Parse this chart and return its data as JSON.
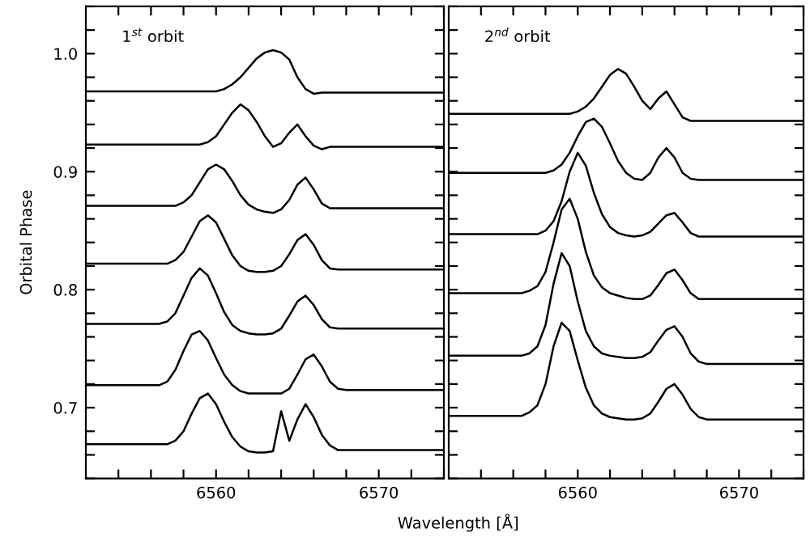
{
  "chart_data": [
    {
      "type": "line",
      "ylabel": "Orbital Phase",
      "xlabel": "Wavelength [Å]",
      "annotations": [
        "1$^{st}$ orbit"
      ],
      "legend": false,
      "grid": false,
      "marker": "none",
      "line_style": "solid",
      "xlim": [
        6552,
        6574
      ],
      "ylim": [
        0.64,
        1.04
      ],
      "xticks": [
        {
          "value": 6554,
          "label": null
        },
        {
          "value": 6556,
          "label": null
        },
        {
          "value": 6558,
          "label": null
        },
        6560,
        {
          "value": 6562,
          "label": null
        },
        {
          "value": 6564,
          "label": null
        },
        {
          "value": 6566,
          "label": null
        },
        {
          "value": 6568,
          "label": null
        },
        6570,
        {
          "value": 6572,
          "label": null
        },
        {
          "value": 6574,
          "label": null
        }
      ],
      "yticks": [
        {
          "value": 0.64,
          "label": null
        },
        {
          "value": 0.66,
          "label": null
        },
        {
          "value": 0.68,
          "label": null
        },
        0.7,
        {
          "value": 0.72,
          "label": null
        },
        {
          "value": 0.74,
          "label": null
        },
        {
          "value": 0.76,
          "label": null
        },
        {
          "value": 0.78,
          "label": null
        },
        0.8,
        {
          "value": 0.82,
          "label": null
        },
        {
          "value": 0.84,
          "label": null
        },
        {
          "value": 0.86,
          "label": null
        },
        {
          "value": 0.88,
          "label": null
        },
        0.9,
        {
          "value": 0.92,
          "label": null
        },
        {
          "value": 0.94,
          "label": null
        },
        {
          "value": 0.96,
          "label": null
        },
        {
          "value": 0.98,
          "label": null
        },
        {
          "value": 1.0,
          "label": "1.0"
        },
        {
          "value": 1.02,
          "label": null
        },
        {
          "value": 1.04,
          "label": null
        }
      ],
      "x": [
        6552,
        6552.5,
        6553,
        6553.5,
        6554,
        6554.5,
        6555,
        6555.5,
        6556,
        6556.5,
        6557,
        6557.5,
        6558,
        6558.5,
        6559,
        6559.5,
        6560,
        6560.5,
        6561,
        6561.5,
        6562,
        6562.5,
        6563,
        6563.5,
        6564,
        6564.5,
        6565,
        6565.5,
        6566,
        6566.5,
        6567,
        6567.5,
        6568,
        6568.5,
        6569,
        6569.5,
        6570,
        6570.5,
        6571,
        6571.5,
        6572,
        6572.5,
        6573,
        6573.5,
        6574
      ],
      "series": [
        {
          "color": "#000000",
          "values": [
            0.968,
            0.968,
            0.968,
            0.968,
            0.968,
            0.968,
            0.968,
            0.968,
            0.968,
            0.968,
            0.968,
            0.968,
            0.968,
            0.968,
            0.968,
            0.968,
            0.968,
            0.97,
            0.974,
            0.98,
            0.988,
            0.996,
            1.001,
            1.003,
            1.001,
            0.995,
            0.98,
            0.97,
            0.966,
            0.967,
            0.967,
            0.967,
            0.967,
            0.967,
            0.967,
            0.967,
            0.967,
            0.967,
            0.967,
            0.967,
            0.967,
            0.967,
            0.967,
            0.967,
            0.967
          ]
        },
        {
          "color": "#000000",
          "values": [
            0.923,
            0.923,
            0.923,
            0.923,
            0.923,
            0.923,
            0.923,
            0.923,
            0.923,
            0.923,
            0.923,
            0.923,
            0.923,
            0.923,
            0.923,
            0.925,
            0.93,
            0.94,
            0.95,
            0.957,
            0.952,
            0.942,
            0.93,
            0.921,
            0.924,
            0.933,
            0.94,
            0.93,
            0.922,
            0.919,
            0.921,
            0.921,
            0.921,
            0.921,
            0.921,
            0.921,
            0.921,
            0.921,
            0.921,
            0.921,
            0.921,
            0.921,
            0.921,
            0.921,
            0.921
          ]
        },
        {
          "color": "#000000",
          "values": [
            0.871,
            0.871,
            0.871,
            0.871,
            0.871,
            0.871,
            0.871,
            0.871,
            0.871,
            0.871,
            0.871,
            0.871,
            0.874,
            0.88,
            0.891,
            0.902,
            0.906,
            0.902,
            0.892,
            0.88,
            0.872,
            0.868,
            0.866,
            0.865,
            0.868,
            0.876,
            0.889,
            0.895,
            0.885,
            0.873,
            0.869,
            0.869,
            0.869,
            0.869,
            0.869,
            0.869,
            0.869,
            0.869,
            0.869,
            0.869,
            0.869,
            0.869,
            0.869,
            0.869,
            0.869
          ]
        },
        {
          "color": "#000000",
          "values": [
            0.822,
            0.822,
            0.822,
            0.822,
            0.822,
            0.822,
            0.822,
            0.822,
            0.822,
            0.822,
            0.822,
            0.825,
            0.832,
            0.845,
            0.858,
            0.863,
            0.857,
            0.843,
            0.829,
            0.82,
            0.816,
            0.815,
            0.815,
            0.816,
            0.82,
            0.83,
            0.842,
            0.847,
            0.838,
            0.825,
            0.818,
            0.817,
            0.817,
            0.817,
            0.817,
            0.817,
            0.817,
            0.817,
            0.817,
            0.817,
            0.817,
            0.817,
            0.817,
            0.817,
            0.817
          ]
        },
        {
          "color": "#000000",
          "values": [
            0.771,
            0.771,
            0.771,
            0.771,
            0.771,
            0.771,
            0.771,
            0.771,
            0.771,
            0.771,
            0.773,
            0.78,
            0.795,
            0.81,
            0.818,
            0.812,
            0.797,
            0.781,
            0.77,
            0.765,
            0.763,
            0.762,
            0.762,
            0.763,
            0.767,
            0.778,
            0.79,
            0.795,
            0.787,
            0.775,
            0.768,
            0.767,
            0.767,
            0.767,
            0.767,
            0.767,
            0.767,
            0.767,
            0.767,
            0.767,
            0.767,
            0.767,
            0.767,
            0.767,
            0.767
          ]
        },
        {
          "color": "#000000",
          "values": [
            0.719,
            0.719,
            0.719,
            0.719,
            0.719,
            0.719,
            0.719,
            0.719,
            0.719,
            0.719,
            0.722,
            0.732,
            0.748,
            0.762,
            0.765,
            0.757,
            0.742,
            0.728,
            0.719,
            0.714,
            0.712,
            0.712,
            0.712,
            0.712,
            0.712,
            0.716,
            0.728,
            0.741,
            0.745,
            0.735,
            0.722,
            0.716,
            0.715,
            0.715,
            0.715,
            0.715,
            0.715,
            0.715,
            0.715,
            0.715,
            0.715,
            0.715,
            0.715,
            0.715,
            0.715
          ]
        },
        {
          "color": "#000000",
          "values": [
            0.669,
            0.669,
            0.669,
            0.669,
            0.669,
            0.669,
            0.669,
            0.669,
            0.669,
            0.669,
            0.669,
            0.672,
            0.68,
            0.695,
            0.708,
            0.712,
            0.703,
            0.688,
            0.675,
            0.667,
            0.663,
            0.662,
            0.662,
            0.663,
            0.697,
            0.672,
            0.69,
            0.703,
            0.692,
            0.677,
            0.668,
            0.664,
            0.664,
            0.664,
            0.664,
            0.664,
            0.664,
            0.664,
            0.664,
            0.664,
            0.664,
            0.664,
            0.664,
            0.664,
            0.664
          ]
        }
      ]
    },
    {
      "type": "line",
      "annotations": [
        "2$^{nd}$ orbit"
      ],
      "legend": false,
      "grid": false,
      "marker": "none",
      "line_style": "solid",
      "tick_labels": "x",
      "xlim": [
        6552,
        6574
      ],
      "ylim": [
        0.64,
        1.04
      ],
      "xticks": [
        {
          "value": 6554,
          "label": null
        },
        {
          "value": 6556,
          "label": null
        },
        {
          "value": 6558,
          "label": null
        },
        6560,
        {
          "value": 6562,
          "label": null
        },
        {
          "value": 6564,
          "label": null
        },
        {
          "value": 6566,
          "label": null
        },
        {
          "value": 6568,
          "label": null
        },
        6570,
        {
          "value": 6572,
          "label": null
        },
        {
          "value": 6574,
          "label": null
        }
      ],
      "yticks": [
        {
          "value": 0.64,
          "label": null
        },
        {
          "value": 0.66,
          "label": null
        },
        {
          "value": 0.68,
          "label": null
        },
        0.7,
        {
          "value": 0.72,
          "label": null
        },
        {
          "value": 0.74,
          "label": null
        },
        {
          "value": 0.76,
          "label": null
        },
        {
          "value": 0.78,
          "label": null
        },
        0.8,
        {
          "value": 0.82,
          "label": null
        },
        {
          "value": 0.84,
          "label": null
        },
        {
          "value": 0.86,
          "label": null
        },
        {
          "value": 0.88,
          "label": null
        },
        0.9,
        {
          "value": 0.92,
          "label": null
        },
        {
          "value": 0.94,
          "label": null
        },
        {
          "value": 0.96,
          "label": null
        },
        {
          "value": 0.98,
          "label": null
        },
        1.0,
        {
          "value": 1.02,
          "label": null
        },
        {
          "value": 1.04,
          "label": null
        }
      ],
      "x": [
        6552,
        6552.5,
        6553,
        6553.5,
        6554,
        6554.5,
        6555,
        6555.5,
        6556,
        6556.5,
        6557,
        6557.5,
        6558,
        6558.5,
        6559,
        6559.5,
        6560,
        6560.5,
        6561,
        6561.5,
        6562,
        6562.5,
        6563,
        6563.5,
        6564,
        6564.5,
        6565,
        6565.5,
        6566,
        6566.5,
        6567,
        6567.5,
        6568,
        6568.5,
        6569,
        6569.5,
        6570,
        6570.5,
        6571,
        6571.5,
        6572,
        6572.5,
        6573,
        6573.5,
        6574
      ],
      "series": [
        {
          "color": "#000000",
          "values": [
            0.949,
            0.949,
            0.949,
            0.949,
            0.949,
            0.949,
            0.949,
            0.949,
            0.949,
            0.949,
            0.949,
            0.949,
            0.949,
            0.949,
            0.949,
            0.949,
            0.951,
            0.955,
            0.962,
            0.972,
            0.982,
            0.987,
            0.983,
            0.972,
            0.96,
            0.953,
            0.962,
            0.968,
            0.957,
            0.946,
            0.943,
            0.943,
            0.943,
            0.943,
            0.943,
            0.943,
            0.943,
            0.943,
            0.943,
            0.943,
            0.943,
            0.943,
            0.943,
            0.943,
            0.943
          ]
        },
        {
          "color": "#000000",
          "values": [
            0.899,
            0.899,
            0.899,
            0.899,
            0.899,
            0.899,
            0.899,
            0.899,
            0.899,
            0.899,
            0.899,
            0.899,
            0.899,
            0.901,
            0.906,
            0.916,
            0.93,
            0.942,
            0.945,
            0.938,
            0.924,
            0.909,
            0.899,
            0.894,
            0.893,
            0.899,
            0.912,
            0.92,
            0.912,
            0.899,
            0.894,
            0.893,
            0.893,
            0.893,
            0.893,
            0.893,
            0.893,
            0.893,
            0.893,
            0.893,
            0.893,
            0.893,
            0.893,
            0.893,
            0.893
          ]
        },
        {
          "color": "#000000",
          "values": [
            0.847,
            0.847,
            0.847,
            0.847,
            0.847,
            0.847,
            0.847,
            0.847,
            0.847,
            0.847,
            0.847,
            0.847,
            0.85,
            0.858,
            0.875,
            0.9,
            0.916,
            0.905,
            0.882,
            0.864,
            0.853,
            0.848,
            0.846,
            0.845,
            0.846,
            0.849,
            0.856,
            0.863,
            0.865,
            0.857,
            0.848,
            0.845,
            0.845,
            0.845,
            0.845,
            0.845,
            0.845,
            0.845,
            0.845,
            0.845,
            0.845,
            0.845,
            0.845,
            0.845,
            0.845
          ]
        },
        {
          "color": "#000000",
          "values": [
            0.797,
            0.797,
            0.797,
            0.797,
            0.797,
            0.797,
            0.797,
            0.797,
            0.797,
            0.797,
            0.799,
            0.803,
            0.815,
            0.84,
            0.868,
            0.877,
            0.86,
            0.832,
            0.812,
            0.802,
            0.797,
            0.795,
            0.793,
            0.792,
            0.792,
            0.795,
            0.804,
            0.814,
            0.817,
            0.808,
            0.797,
            0.792,
            0.792,
            0.792,
            0.792,
            0.792,
            0.792,
            0.792,
            0.792,
            0.792,
            0.792,
            0.792,
            0.792,
            0.792,
            0.792
          ]
        },
        {
          "color": "#000000",
          "values": [
            0.744,
            0.744,
            0.744,
            0.744,
            0.744,
            0.744,
            0.744,
            0.744,
            0.744,
            0.744,
            0.746,
            0.752,
            0.77,
            0.805,
            0.831,
            0.82,
            0.79,
            0.765,
            0.752,
            0.746,
            0.744,
            0.743,
            0.742,
            0.742,
            0.743,
            0.747,
            0.757,
            0.766,
            0.769,
            0.76,
            0.746,
            0.739,
            0.737,
            0.737,
            0.737,
            0.737,
            0.737,
            0.737,
            0.737,
            0.737,
            0.737,
            0.737,
            0.737,
            0.737,
            0.737
          ]
        },
        {
          "color": "#000000",
          "values": [
            0.693,
            0.693,
            0.693,
            0.693,
            0.693,
            0.693,
            0.693,
            0.693,
            0.693,
            0.693,
            0.696,
            0.702,
            0.72,
            0.752,
            0.772,
            0.765,
            0.74,
            0.717,
            0.702,
            0.695,
            0.692,
            0.691,
            0.69,
            0.69,
            0.691,
            0.695,
            0.705,
            0.716,
            0.72,
            0.711,
            0.699,
            0.692,
            0.69,
            0.69,
            0.69,
            0.69,
            0.69,
            0.69,
            0.69,
            0.69,
            0.69,
            0.69,
            0.69,
            0.69,
            0.69
          ]
        }
      ]
    }
  ]
}
